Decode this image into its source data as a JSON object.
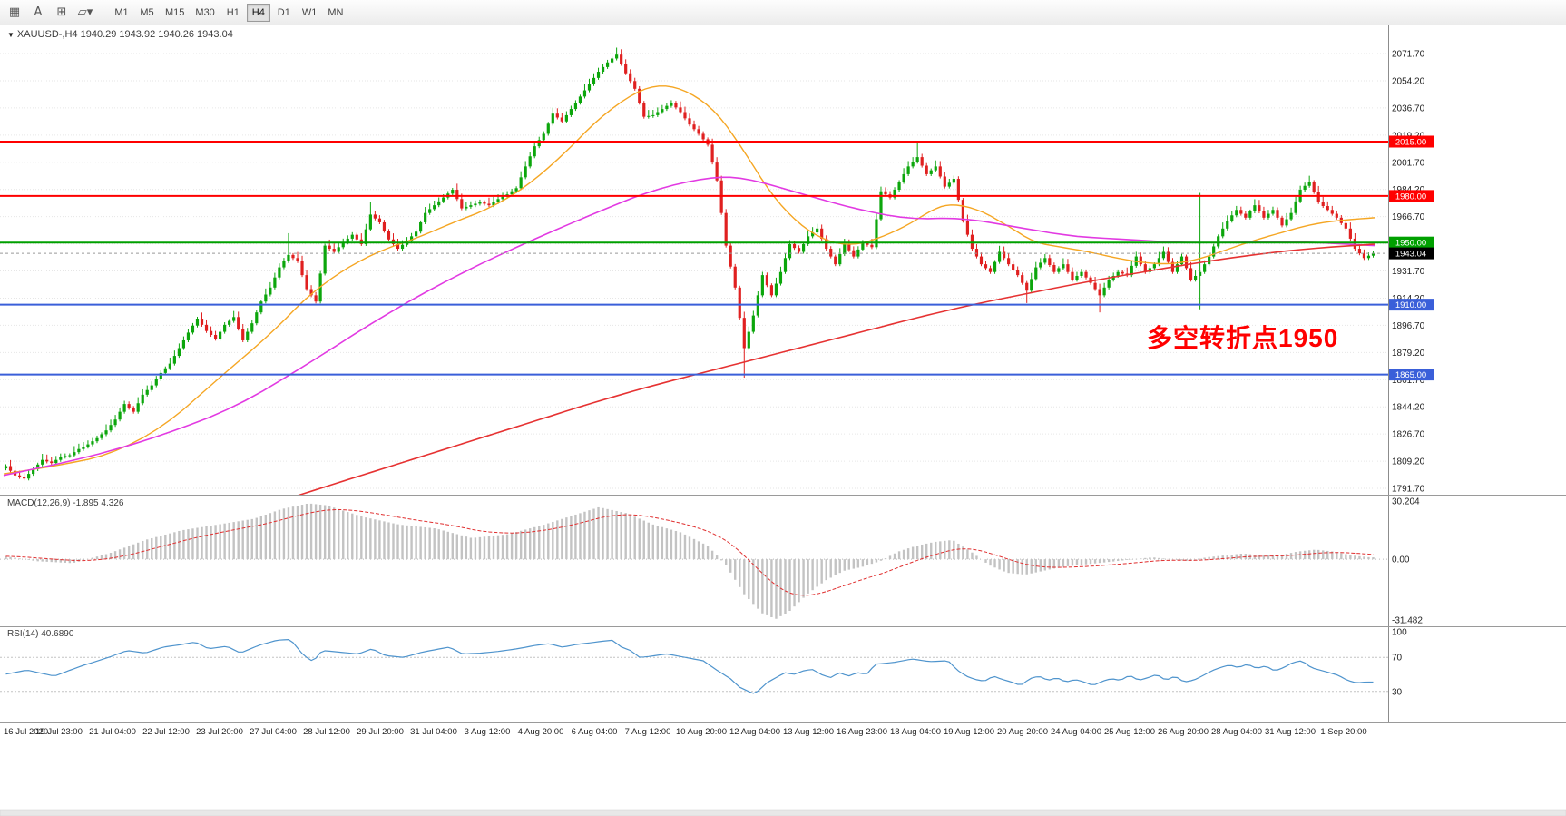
{
  "toolbar": {
    "left_icons": [
      {
        "name": "terminal-grid-icon"
      },
      {
        "name": "cursor-pointer-icon"
      },
      {
        "name": "crosshair-icon"
      },
      {
        "name": "draw-shapes-icon"
      }
    ],
    "timeframes": [
      {
        "label": "M1",
        "active": false
      },
      {
        "label": "M5",
        "active": false
      },
      {
        "label": "M15",
        "active": false
      },
      {
        "label": "M30",
        "active": false
      },
      {
        "label": "H1",
        "active": false
      },
      {
        "label": "H4",
        "active": true
      },
      {
        "label": "D1",
        "active": false
      },
      {
        "label": "W1",
        "active": false
      },
      {
        "label": "MN",
        "active": false
      }
    ]
  },
  "chart": {
    "symbol_label": "XAUUSD-,H4  1940.29 1943.92 1940.26 1943.04",
    "annotation": {
      "text": "多空转折点1950",
      "color": "#ff0000"
    },
    "current_price_tag": {
      "label": "1943.04",
      "price": 1943.04,
      "bg": "#000000"
    },
    "levels": [
      {
        "price": 2015.0,
        "label": "2015.00",
        "color": "#ff0000"
      },
      {
        "price": 1980.0,
        "label": "1980.00",
        "color": "#ff0000"
      },
      {
        "price": 1950.0,
        "label": "1950.00",
        "color": "#00a000"
      },
      {
        "price": 1910.0,
        "label": "1910.00",
        "color": "#3a5fd9"
      },
      {
        "price": 1865.0,
        "label": "1865.00",
        "color": "#3a5fd9"
      }
    ],
    "y_ticks": [
      "2071.70",
      "2054.20",
      "2036.70",
      "2019.20",
      "2001.70",
      "1984.20",
      "1966.70",
      "1949.20",
      "1931.70",
      "1914.20",
      "1896.70",
      "1879.20",
      "1861.70",
      "1844.20",
      "1826.70",
      "1809.20",
      "1791.70"
    ],
    "colors": {
      "bull": "#0ca60c",
      "bear": "#e02020",
      "ma_fast": "#f5a623",
      "ma_mid": "#e23ae2",
      "ma_slow": "#e63232",
      "grid": "#e6e6e6"
    }
  },
  "macd": {
    "label": "MACD(12,26,9) -1.895 4.326",
    "axis_labels": [
      "30.204",
      "0.00",
      "-31.482"
    ],
    "max": 30.204,
    "min": -31.482,
    "hist_color": "#c3c3c3",
    "signal_color": "#e03030"
  },
  "rsi": {
    "label": "RSI(14) 40.6890",
    "axis_labels": [
      "100",
      "70",
      "30"
    ],
    "levels": [
      70,
      30
    ],
    "line_color": "#4f94cd"
  },
  "time_axis": [
    "16 Jul 2020",
    "19 Jul 23:00",
    "21 Jul 04:00",
    "22 Jul 12:00",
    "23 Jul 20:00",
    "27 Jul 04:00",
    "28 Jul 12:00",
    "29 Jul 20:00",
    "31 Jul 04:00",
    "3 Aug 12:00",
    "4 Aug 20:00",
    "6 Aug 04:00",
    "7 Aug 12:00",
    "10 Aug 20:00",
    "12 Aug 04:00",
    "13 Aug 12:00",
    "16 Aug 23:00",
    "18 Aug 04:00",
    "19 Aug 12:00",
    "20 Aug 20:00",
    "24 Aug 04:00",
    "25 Aug 12:00",
    "26 Aug 20:00",
    "28 Aug 04:00",
    "31 Aug 12:00",
    "1 Sep 20:00"
  ],
  "chart_data": {
    "type": "candlestick",
    "symbol": "XAUUSD-",
    "timeframe": "H4",
    "current_bar_ohlc": {
      "open": 1940.29,
      "high": 1943.92,
      "low": 1940.26,
      "close": 1943.04
    },
    "y_axis_range": [
      1791.7,
      2071.7
    ],
    "closes_approx": [
      1806,
      1800,
      1798,
      1804,
      1810,
      1808,
      1812,
      1813,
      1817,
      1820,
      1824,
      1829,
      1836,
      1846,
      1841,
      1852,
      1858,
      1866,
      1872,
      1882,
      1892,
      1901,
      1893,
      1888,
      1897,
      1902,
      1887,
      1898,
      1912,
      1921,
      1934,
      1942,
      1938,
      1920,
      1912,
      1948,
      1944,
      1950,
      1955,
      1949,
      1968,
      1963,
      1952,
      1946,
      1951,
      1957,
      1969,
      1974,
      1979,
      1984,
      1972,
      1974,
      1976,
      1974,
      1978,
      1981,
      1985,
      1999,
      2012,
      2020,
      2033,
      2028,
      2036,
      2044,
      2052,
      2060,
      2066,
      2071,
      2059,
      2049,
      2031,
      2032,
      2036,
      2040,
      2034,
      2026,
      2020,
      2013,
      1990,
      1948,
      1921,
      1882,
      1903,
      1929,
      1916,
      1931,
      1949,
      1944,
      1954,
      1959,
      1946,
      1936,
      1949,
      1941,
      1950,
      1947,
      1983,
      1979,
      1989,
      1999,
      2005,
      1994,
      1999,
      1986,
      1991,
      1964,
      1946,
      1936,
      1931,
      1944,
      1936,
      1929,
      1919,
      1934,
      1940,
      1931,
      1936,
      1926,
      1931,
      1924,
      1916,
      1926,
      1931,
      1929,
      1941,
      1931,
      1936,
      1944,
      1931,
      1941,
      1926,
      1931,
      1941,
      1954,
      1964,
      1971,
      1966,
      1974,
      1966,
      1971,
      1961,
      1969,
      1984,
      1989,
      1976,
      1971,
      1966,
      1959,
      1946,
      1940,
      1943.04
    ],
    "high_overrides": {
      "31": 1956,
      "40": 1976,
      "67": 2075.5,
      "100": 2014,
      "131": 1982,
      "143": 1993
    },
    "low_overrides": {
      "81": 1863,
      "112": 1911,
      "120": 1905,
      "131": 1907
    },
    "ma_fast_path": [
      [
        4,
        1801
      ],
      [
        60,
        1806
      ],
      [
        120,
        1813
      ],
      [
        180,
        1831
      ],
      [
        240,
        1862
      ],
      [
        300,
        1892
      ],
      [
        340,
        1916
      ],
      [
        380,
        1933
      ],
      [
        420,
        1945
      ],
      [
        460,
        1953
      ],
      [
        500,
        1963
      ],
      [
        540,
        1972
      ],
      [
        580,
        1986
      ],
      [
        620,
        2006
      ],
      [
        660,
        2030
      ],
      [
        700,
        2047
      ],
      [
        730,
        2052
      ],
      [
        760,
        2047
      ],
      [
        790,
        2034
      ],
      [
        820,
        2009
      ],
      [
        850,
        1981
      ],
      [
        880,
        1962
      ],
      [
        910,
        1951
      ],
      [
        940,
        1948
      ],
      [
        970,
        1953
      ],
      [
        1000,
        1961
      ],
      [
        1030,
        1972
      ],
      [
        1050,
        1975
      ],
      [
        1080,
        1971
      ],
      [
        1110,
        1961
      ],
      [
        1140,
        1950
      ],
      [
        1170,
        1947
      ],
      [
        1200,
        1944
      ],
      [
        1230,
        1940
      ],
      [
        1260,
        1937
      ],
      [
        1290,
        1936
      ],
      [
        1320,
        1939
      ],
      [
        1350,
        1945
      ],
      [
        1380,
        1951
      ],
      [
        1410,
        1956
      ],
      [
        1440,
        1961
      ],
      [
        1470,
        1964
      ],
      [
        1516,
        1966
      ]
    ],
    "ma_mid_path": [
      [
        4,
        1800
      ],
      [
        100,
        1812
      ],
      [
        180,
        1826
      ],
      [
        260,
        1844
      ],
      [
        340,
        1872
      ],
      [
        420,
        1902
      ],
      [
        500,
        1928
      ],
      [
        580,
        1950
      ],
      [
        660,
        1970
      ],
      [
        720,
        1984
      ],
      [
        780,
        1992
      ],
      [
        820,
        1992
      ],
      [
        880,
        1982
      ],
      [
        940,
        1972
      ],
      [
        1000,
        1965
      ],
      [
        1060,
        1966
      ],
      [
        1120,
        1960
      ],
      [
        1180,
        1954
      ],
      [
        1240,
        1952
      ],
      [
        1300,
        1950
      ],
      [
        1360,
        1950
      ],
      [
        1420,
        1951
      ],
      [
        1516,
        1948
      ]
    ],
    "ma_slow_path": [
      [
        290,
        1780
      ],
      [
        360,
        1793
      ],
      [
        420,
        1804
      ],
      [
        480,
        1815
      ],
      [
        540,
        1826
      ],
      [
        600,
        1837
      ],
      [
        660,
        1848
      ],
      [
        720,
        1858
      ],
      [
        780,
        1867
      ],
      [
        840,
        1876
      ],
      [
        900,
        1885
      ],
      [
        960,
        1894
      ],
      [
        1020,
        1903
      ],
      [
        1080,
        1911
      ],
      [
        1140,
        1918
      ],
      [
        1200,
        1925
      ],
      [
        1260,
        1931
      ],
      [
        1320,
        1937
      ],
      [
        1380,
        1942
      ],
      [
        1440,
        1946
      ],
      [
        1516,
        1949
      ]
    ],
    "macd_hist_path": [
      [
        0,
        2
      ],
      [
        40,
        -1
      ],
      [
        80,
        -2
      ],
      [
        120,
        3
      ],
      [
        160,
        10
      ],
      [
        200,
        15
      ],
      [
        240,
        18
      ],
      [
        280,
        21
      ],
      [
        310,
        26
      ],
      [
        340,
        29
      ],
      [
        360,
        28
      ],
      [
        400,
        22
      ],
      [
        440,
        18
      ],
      [
        480,
        16
      ],
      [
        520,
        11
      ],
      [
        560,
        13
      ],
      [
        600,
        18
      ],
      [
        640,
        24
      ],
      [
        660,
        27
      ],
      [
        690,
        24
      ],
      [
        720,
        18
      ],
      [
        750,
        14
      ],
      [
        780,
        7
      ],
      [
        800,
        -3
      ],
      [
        820,
        -18
      ],
      [
        840,
        -28
      ],
      [
        855,
        -31
      ],
      [
        870,
        -27
      ],
      [
        890,
        -18
      ],
      [
        910,
        -11
      ],
      [
        930,
        -6
      ],
      [
        950,
        -4
      ],
      [
        970,
        -1
      ],
      [
        990,
        4
      ],
      [
        1010,
        7
      ],
      [
        1030,
        9
      ],
      [
        1050,
        10
      ],
      [
        1070,
        4
      ],
      [
        1090,
        -3
      ],
      [
        1110,
        -7
      ],
      [
        1130,
        -8
      ],
      [
        1150,
        -6
      ],
      [
        1170,
        -4
      ],
      [
        1190,
        -3
      ],
      [
        1210,
        -2
      ],
      [
        1230,
        -1
      ],
      [
        1250,
        0
      ],
      [
        1270,
        1
      ],
      [
        1290,
        0
      ],
      [
        1310,
        -1
      ],
      [
        1330,
        1
      ],
      [
        1350,
        2
      ],
      [
        1370,
        3
      ],
      [
        1390,
        2
      ],
      [
        1410,
        2
      ],
      [
        1430,
        4
      ],
      [
        1450,
        5
      ],
      [
        1470,
        4
      ],
      [
        1490,
        2
      ],
      [
        1510,
        1
      ]
    ],
    "rsi_path": [
      [
        5,
        50
      ],
      [
        30,
        55
      ],
      [
        60,
        48
      ],
      [
        90,
        60
      ],
      [
        120,
        70
      ],
      [
        140,
        78
      ],
      [
        160,
        75
      ],
      [
        180,
        82
      ],
      [
        200,
        85
      ],
      [
        215,
        88
      ],
      [
        230,
        80
      ],
      [
        250,
        83
      ],
      [
        265,
        75
      ],
      [
        285,
        84
      ],
      [
        305,
        90
      ],
      [
        320,
        91
      ],
      [
        335,
        72
      ],
      [
        345,
        65
      ],
      [
        355,
        78
      ],
      [
        375,
        76
      ],
      [
        395,
        74
      ],
      [
        410,
        80
      ],
      [
        425,
        72
      ],
      [
        445,
        70
      ],
      [
        465,
        76
      ],
      [
        485,
        80
      ],
      [
        495,
        82
      ],
      [
        510,
        74
      ],
      [
        530,
        75
      ],
      [
        550,
        77
      ],
      [
        570,
        80
      ],
      [
        590,
        84
      ],
      [
        605,
        86
      ],
      [
        620,
        82
      ],
      [
        635,
        85
      ],
      [
        650,
        87
      ],
      [
        665,
        89
      ],
      [
        675,
        90
      ],
      [
        685,
        82
      ],
      [
        695,
        78
      ],
      [
        705,
        70
      ],
      [
        715,
        71
      ],
      [
        735,
        74
      ],
      [
        755,
        70
      ],
      [
        775,
        66
      ],
      [
        790,
        55
      ],
      [
        805,
        45
      ],
      [
        815,
        35
      ],
      [
        825,
        30
      ],
      [
        832,
        27
      ],
      [
        845,
        40
      ],
      [
        855,
        46
      ],
      [
        865,
        52
      ],
      [
        875,
        50
      ],
      [
        885,
        54
      ],
      [
        895,
        56
      ],
      [
        905,
        50
      ],
      [
        915,
        46
      ],
      [
        925,
        52
      ],
      [
        935,
        48
      ],
      [
        945,
        52
      ],
      [
        955,
        50
      ],
      [
        965,
        62
      ],
      [
        985,
        64
      ],
      [
        1005,
        68
      ],
      [
        1025,
        65
      ],
      [
        1045,
        66
      ],
      [
        1055,
        55
      ],
      [
        1065,
        48
      ],
      [
        1075,
        44
      ],
      [
        1085,
        42
      ],
      [
        1095,
        48
      ],
      [
        1105,
        44
      ],
      [
        1115,
        41
      ],
      [
        1125,
        37
      ],
      [
        1135,
        45
      ],
      [
        1145,
        48
      ],
      [
        1155,
        43
      ],
      [
        1165,
        46
      ],
      [
        1175,
        41
      ],
      [
        1185,
        44
      ],
      [
        1195,
        41
      ],
      [
        1205,
        37
      ],
      [
        1215,
        42
      ],
      [
        1225,
        45
      ],
      [
        1235,
        43
      ],
      [
        1245,
        49
      ],
      [
        1255,
        43
      ],
      [
        1265,
        46
      ],
      [
        1275,
        50
      ],
      [
        1285,
        43
      ],
      [
        1295,
        48
      ],
      [
        1305,
        41
      ],
      [
        1315,
        43
      ],
      [
        1325,
        48
      ],
      [
        1335,
        54
      ],
      [
        1345,
        58
      ],
      [
        1355,
        61
      ],
      [
        1365,
        58
      ],
      [
        1375,
        62
      ],
      [
        1385,
        57
      ],
      [
        1395,
        60
      ],
      [
        1405,
        54
      ],
      [
        1415,
        58
      ],
      [
        1425,
        64
      ],
      [
        1435,
        66
      ],
      [
        1445,
        58
      ],
      [
        1455,
        55
      ],
      [
        1465,
        52
      ],
      [
        1475,
        49
      ],
      [
        1485,
        43
      ],
      [
        1495,
        40
      ],
      [
        1505,
        41
      ]
    ]
  }
}
